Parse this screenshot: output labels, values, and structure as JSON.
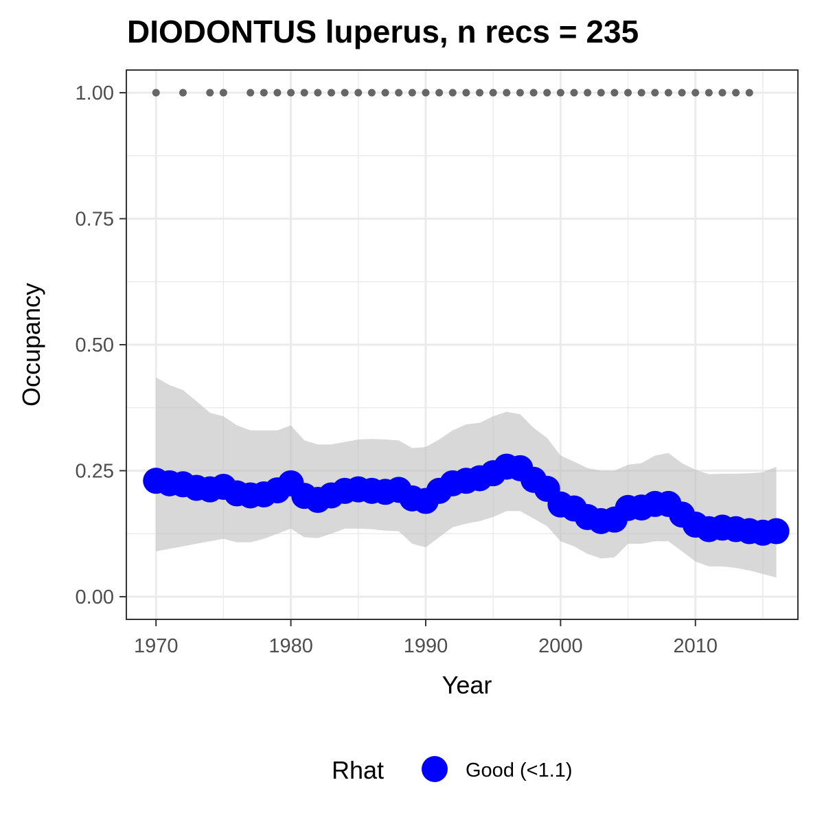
{
  "chart_data": {
    "type": "line",
    "title": "DIODONTUS luperus, n recs = 235",
    "xlabel": "Year",
    "ylabel": "Occupancy",
    "xlim": [
      1967.8,
      2017.6
    ],
    "ylim": [
      -0.045,
      1.045
    ],
    "x_ticks": [
      1970,
      1980,
      1990,
      2000,
      2010
    ],
    "y_ticks": [
      0.0,
      0.25,
      0.5,
      0.75,
      1.0
    ],
    "y_tick_labels": [
      "0.00",
      "0.25",
      "0.50",
      "0.75",
      "1.00"
    ],
    "grid": true,
    "legend": {
      "position": "bottom",
      "title": "Rhat",
      "entries": [
        {
          "label": "Good (<1.1)",
          "color": "#0000ff"
        }
      ]
    },
    "colors": {
      "series": "#0000ff",
      "ribbon": "#bebebe",
      "records": "#666666",
      "grid": "#ebebeb",
      "panel_border": "#333333"
    },
    "series": [
      {
        "x": [
          1970,
          1971,
          1972,
          1973,
          1974,
          1975,
          1976,
          1977,
          1978,
          1979,
          1980,
          1981,
          1982,
          1983,
          1984,
          1985,
          1986,
          1987,
          1988,
          1989,
          1990,
          1991,
          1992,
          1993,
          1994,
          1995,
          1996,
          1997,
          1998,
          1999,
          2000,
          2001,
          2002,
          2003,
          2004,
          2005,
          2006,
          2007,
          2008,
          2009,
          2010,
          2011,
          2012,
          2013,
          2014,
          2015,
          2016
        ],
        "values": [
          0.23,
          0.225,
          0.223,
          0.216,
          0.213,
          0.218,
          0.205,
          0.201,
          0.203,
          0.211,
          0.225,
          0.2,
          0.192,
          0.201,
          0.21,
          0.213,
          0.21,
          0.208,
          0.212,
          0.195,
          0.19,
          0.21,
          0.225,
          0.23,
          0.235,
          0.245,
          0.258,
          0.255,
          0.232,
          0.214,
          0.183,
          0.175,
          0.158,
          0.15,
          0.153,
          0.176,
          0.177,
          0.184,
          0.184,
          0.163,
          0.143,
          0.134,
          0.137,
          0.134,
          0.13,
          0.127,
          0.13
        ],
        "lower": [
          0.09,
          0.095,
          0.1,
          0.105,
          0.11,
          0.115,
          0.108,
          0.108,
          0.115,
          0.125,
          0.135,
          0.118,
          0.116,
          0.125,
          0.135,
          0.135,
          0.134,
          0.131,
          0.13,
          0.105,
          0.098,
          0.118,
          0.138,
          0.145,
          0.15,
          0.158,
          0.17,
          0.17,
          0.155,
          0.14,
          0.11,
          0.1,
          0.085,
          0.076,
          0.078,
          0.105,
          0.105,
          0.11,
          0.11,
          0.09,
          0.07,
          0.06,
          0.06,
          0.057,
          0.052,
          0.045,
          0.038
        ],
        "upper": [
          0.435,
          0.42,
          0.41,
          0.388,
          0.365,
          0.358,
          0.34,
          0.33,
          0.33,
          0.33,
          0.34,
          0.31,
          0.302,
          0.302,
          0.307,
          0.312,
          0.313,
          0.312,
          0.31,
          0.295,
          0.297,
          0.312,
          0.33,
          0.342,
          0.345,
          0.358,
          0.367,
          0.362,
          0.335,
          0.315,
          0.28,
          0.268,
          0.255,
          0.25,
          0.25,
          0.262,
          0.265,
          0.28,
          0.285,
          0.265,
          0.252,
          0.243,
          0.244,
          0.244,
          0.245,
          0.247,
          0.258
        ]
      }
    ],
    "records": {
      "y": 1.0,
      "x": [
        1970,
        1972,
        1974,
        1975,
        1977,
        1978,
        1979,
        1980,
        1981,
        1982,
        1983,
        1984,
        1985,
        1986,
        1987,
        1988,
        1989,
        1990,
        1991,
        1992,
        1993,
        1994,
        1995,
        1996,
        1997,
        1998,
        1999,
        2000,
        2001,
        2002,
        2003,
        2004,
        2005,
        2006,
        2007,
        2008,
        2009,
        2010,
        2011,
        2012,
        2013,
        2014
      ]
    }
  }
}
